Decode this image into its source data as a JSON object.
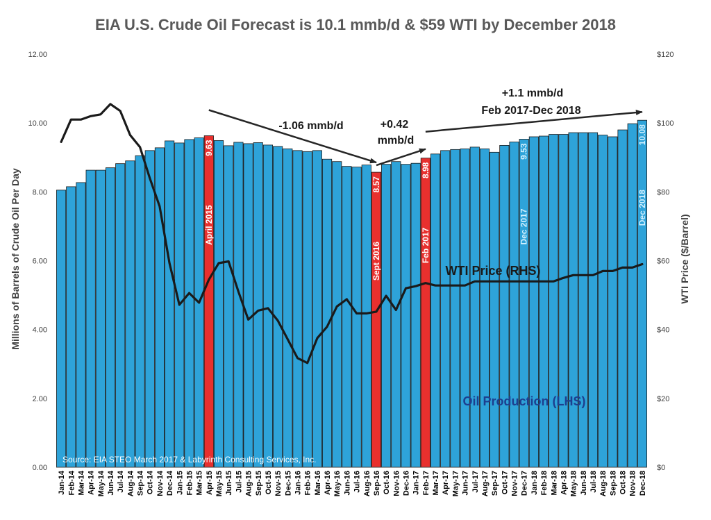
{
  "chart_data": {
    "type": "bar",
    "title": "EIA U.S. Crude Oil Forecast is 10.1 mmb/d & $59 WTI by December 2018",
    "ylabel": "Millions of Barrels of Crude Oil Per Day",
    "y2label": "WTI Price ($/Barrel)",
    "ylim": [
      0,
      12
    ],
    "y2lim": [
      0,
      120
    ],
    "yticks": [
      "0.00",
      "2.00",
      "4.00",
      "6.00",
      "8.00",
      "10.00",
      "12.00"
    ],
    "y2ticks": [
      "$0",
      "$20",
      "$40",
      "$60",
      "$80",
      "$100",
      "$120"
    ],
    "categories": [
      "Jan-14",
      "Feb-14",
      "Mar-14",
      "Apr-14",
      "May-14",
      "Jun-14",
      "Jul-14",
      "Aug-14",
      "Sep-14",
      "Oct-14",
      "Nov-14",
      "Dec-14",
      "Jan-15",
      "Feb-15",
      "Mar-15",
      "Apr-15",
      "May-15",
      "Jun-15",
      "Jul-15",
      "Aug-15",
      "Sep-15",
      "Oct-15",
      "Nov-15",
      "Dec-15",
      "Jan-16",
      "Feb-16",
      "Mar-16",
      "Apr-16",
      "May-16",
      "Jun-16",
      "Jul-16",
      "Aug-16",
      "Sep-16",
      "Oct-16",
      "Nov-16",
      "Dec-16",
      "Jan-17",
      "Feb-17",
      "Mar-17",
      "Apr-17",
      "May-17",
      "Jun-17",
      "Jul-17",
      "Aug-17",
      "Sep-17",
      "Oct-17",
      "Nov-17",
      "Dec-17",
      "Jan-18",
      "Feb-18",
      "Mar-18",
      "Apr-18",
      "May-18",
      "Jun-18",
      "Jul-18",
      "Aug-18",
      "Sep-18",
      "Oct-18",
      "Nov-18",
      "Dec-18"
    ],
    "series": [
      {
        "name": "Oil Production (LHS)",
        "type": "bar",
        "axis": "left",
        "color": "#2ea3d9",
        "values": [
          8.05,
          8.15,
          8.27,
          8.63,
          8.63,
          8.7,
          8.82,
          8.9,
          9.05,
          9.2,
          9.28,
          9.48,
          9.42,
          9.52,
          9.57,
          9.63,
          9.49,
          9.34,
          9.44,
          9.4,
          9.43,
          9.36,
          9.32,
          9.25,
          9.2,
          9.17,
          9.2,
          8.95,
          8.88,
          8.74,
          8.72,
          8.78,
          8.57,
          8.8,
          8.88,
          8.8,
          8.83,
          8.98,
          9.1,
          9.2,
          9.23,
          9.25,
          9.3,
          9.25,
          9.15,
          9.35,
          9.45,
          9.53,
          9.6,
          9.62,
          9.67,
          9.67,
          9.72,
          9.72,
          9.72,
          9.65,
          9.6,
          9.8,
          9.98,
          10.08
        ]
      },
      {
        "name": "WTI Price (RHS)",
        "type": "line",
        "axis": "right",
        "color": "#1a1a1a",
        "values": [
          94.5,
          101,
          101,
          102,
          102.5,
          105.5,
          103.5,
          96.5,
          93,
          84,
          75.8,
          59.3,
          47.2,
          50.6,
          47.8,
          54.5,
          59.3,
          59.8,
          51,
          42.9,
          45.5,
          46.2,
          42.6,
          37.2,
          31.7,
          30.3,
          37.5,
          40.8,
          46.7,
          48.8,
          44.7,
          44.7,
          45.2,
          49.8,
          45.7,
          52,
          52.6,
          53.5,
          52.8,
          52.8,
          52.8,
          52.8,
          54,
          54,
          54,
          54,
          54,
          54,
          54,
          54,
          54,
          55,
          55.8,
          55.8,
          55.8,
          57,
          57,
          58,
          58,
          59
        ]
      }
    ],
    "highlights": [
      {
        "index": 15,
        "value_label": "9.63",
        "date_label": "April 2015",
        "color": "#e8302e"
      },
      {
        "index": 32,
        "value_label": "8.57",
        "date_label": "Sept 2016",
        "color": "#e8302e"
      },
      {
        "index": 37,
        "value_label": "8.98",
        "date_label": "Feb 2017",
        "color": "#e8302e"
      },
      {
        "index": 47,
        "value_label": "9.53",
        "date_label": "Dec 2017",
        "color": null
      },
      {
        "index": 59,
        "value_label": "10.08",
        "date_label": "Dec 2018",
        "color": null
      }
    ],
    "annotations": [
      {
        "text": "-1.06 mmb/d",
        "from_index": 15,
        "to_index": 32
      },
      {
        "text": "+0.42",
        "text2": "mmb/d",
        "from_index": 32,
        "to_index": 37
      },
      {
        "text": "+1.1 mmb/d",
        "text2": "Feb 2017-Dec 2018",
        "from_index": 37,
        "to_index": 59
      }
    ],
    "series_labels": {
      "price": "WTI Price (RHS)",
      "production": "Oil Production (LHS)"
    },
    "source": "Source: EIA STEO March  2017 &  Labyrinth Consulting Services, Inc.",
    "grid": false,
    "colors": {
      "bar": "#2ea3d9",
      "highlight": "#e8302e",
      "price_line": "#1a1a1a",
      "production_label": "#1d3f8f",
      "label_light": "#ffffff",
      "label_cyan": "#d2f1ff",
      "arrow": "#262626"
    }
  }
}
